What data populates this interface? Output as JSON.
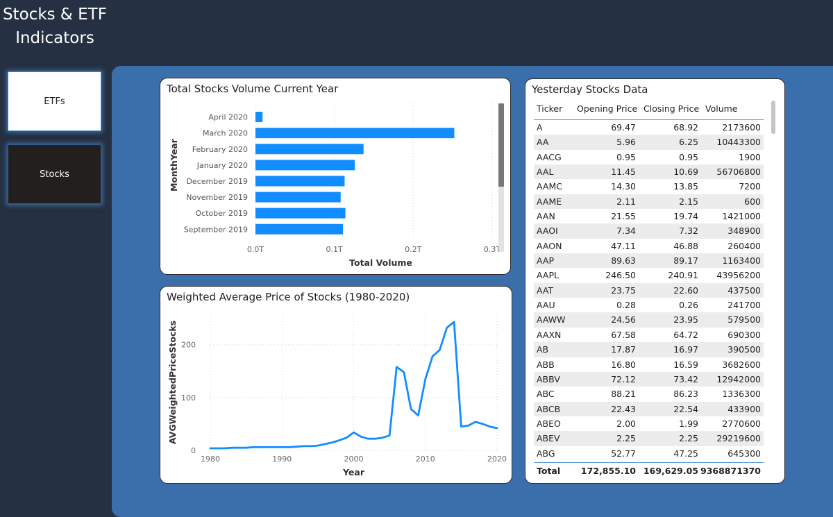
{
  "app": {
    "title_line1": "Stocks & ETF",
    "title_line2": "Indicators"
  },
  "nav": {
    "etfs_label": "ETFs",
    "stocks_label": "Stocks"
  },
  "volume_card": {
    "title": "Total Stocks Volume Current Year",
    "chart_data": {
      "type": "bar",
      "orientation": "horizontal",
      "title": "Total Stocks Volume Current Year",
      "xlabel": "Total Volume",
      "ylabel": "MonthYear",
      "categories": [
        "April 2020",
        "March 2020",
        "February 2020",
        "January 2020",
        "December 2019",
        "November 2019",
        "October 2019",
        "September 2019"
      ],
      "values": [
        0.009,
        0.252,
        0.137,
        0.126,
        0.113,
        0.108,
        0.114,
        0.111
      ],
      "value_unit": "T",
      "xlim": [
        0,
        0.3
      ],
      "xticks": [
        "0.0T",
        "0.1T",
        "0.2T",
        "0.3T"
      ],
      "bar_color": "#118dff",
      "grid": true
    }
  },
  "price_card": {
    "title": "Weighted Average Price of Stocks (1980-2020)",
    "chart_data": {
      "type": "line",
      "title": "Weighted Average Price of Stocks (1980-2020)",
      "xlabel": "Year",
      "ylabel": "AVGWeightedPriceStocks",
      "x": [
        1980,
        1981,
        1982,
        1983,
        1984,
        1985,
        1986,
        1987,
        1988,
        1989,
        1990,
        1991,
        1992,
        1993,
        1994,
        1995,
        1996,
        1997,
        1998,
        1999,
        2000,
        2001,
        2002,
        2003,
        2004,
        2005,
        2006,
        2007,
        2008,
        2009,
        2010,
        2011,
        2012,
        2013,
        2014,
        2015,
        2016,
        2017,
        2018,
        2019,
        2020
      ],
      "y": [
        4,
        4,
        4,
        5,
        5,
        5,
        6,
        6,
        6,
        6,
        6,
        6,
        7,
        8,
        8,
        9,
        12,
        15,
        19,
        24,
        34,
        26,
        22,
        22,
        24,
        28,
        158,
        148,
        78,
        66,
        135,
        178,
        190,
        232,
        243,
        45,
        47,
        54,
        50,
        45,
        42
      ],
      "xticks": [
        "1980",
        "1990",
        "2000",
        "2010",
        "2020"
      ],
      "yticks": [
        "0",
        "100",
        "200"
      ],
      "xlim": [
        1980,
        2020
      ],
      "ylim": [
        0,
        260
      ],
      "line_color": "#118dff",
      "grid": true
    }
  },
  "table": {
    "title": "Yesterday Stocks Data",
    "headers": [
      "Ticker",
      "Opening Price",
      "Closing Price",
      "Volume"
    ],
    "rows": [
      [
        "A",
        "69.47",
        "68.92",
        "2173600"
      ],
      [
        "AA",
        "5.96",
        "6.25",
        "10443300"
      ],
      [
        "AACG",
        "0.95",
        "0.95",
        "1900"
      ],
      [
        "AAL",
        "11.45",
        "10.69",
        "56706800"
      ],
      [
        "AAMC",
        "14.30",
        "13.85",
        "7200"
      ],
      [
        "AAME",
        "2.11",
        "2.15",
        "600"
      ],
      [
        "AAN",
        "21.55",
        "19.74",
        "1421000"
      ],
      [
        "AAOI",
        "7.34",
        "7.32",
        "348900"
      ],
      [
        "AAON",
        "47.11",
        "46.88",
        "260400"
      ],
      [
        "AAP",
        "89.63",
        "89.17",
        "1163400"
      ],
      [
        "AAPL",
        "246.50",
        "240.91",
        "43956200"
      ],
      [
        "AAT",
        "23.75",
        "22.60",
        "437500"
      ],
      [
        "AAU",
        "0.28",
        "0.26",
        "241700"
      ],
      [
        "AAWW",
        "24.56",
        "23.95",
        "579500"
      ],
      [
        "AAXN",
        "67.58",
        "64.72",
        "690300"
      ],
      [
        "AB",
        "17.87",
        "16.97",
        "390500"
      ],
      [
        "ABB",
        "16.80",
        "16.59",
        "3682600"
      ],
      [
        "ABBV",
        "72.12",
        "73.42",
        "12942000"
      ],
      [
        "ABC",
        "88.21",
        "86.23",
        "1336300"
      ],
      [
        "ABCB",
        "22.43",
        "22.54",
        "433900"
      ],
      [
        "ABEO",
        "2.00",
        "1.99",
        "2770600"
      ],
      [
        "ABEV",
        "2.25",
        "2.25",
        "29219600"
      ],
      [
        "ABG",
        "52.77",
        "47.25",
        "645300"
      ]
    ],
    "total": [
      "Total",
      "172,855.10",
      "169,629.05",
      "9368871370"
    ]
  }
}
